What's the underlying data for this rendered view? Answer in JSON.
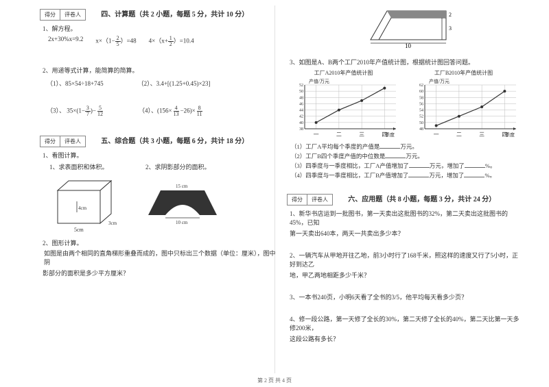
{
  "scorebox": {
    "score": "得分",
    "marker": "评卷人"
  },
  "sec4": {
    "title": "四、计算题（共 2 小题，每题 5 分，共计 10 分）",
    "q1": "1、解方程。",
    "eq1": "2x+30%x=9.2",
    "eq2a": "x×（1−",
    "eq2b": "）=48",
    "eq3a": "4×（x+",
    "eq3b": "）=10.4",
    "q2": "2、用递等式计算，能简算的简算。",
    "s1": "（1）、85×54÷18+745",
    "s2": "（2）、3.4+[(1.25+0.45)×23]",
    "s3a": "（3）、 35×(1−",
    "s3b": ")−",
    "s4a": "（4）、(156×",
    "s4b": "−26)×"
  },
  "frac": {
    "two_fifth_n": "2",
    "two_fifth_d": "5",
    "one_half_n": "1",
    "one_half_d": "2",
    "three_seventh_n": "3",
    "three_seventh_d": "7",
    "five_twelfth_n": "5",
    "five_twelfth_d": "12",
    "four_thirteen_n": "4",
    "four_thirteen_d": "13",
    "eight_eleven_n": "8",
    "eight_eleven_d": "11"
  },
  "sec5": {
    "title": "五、综合题（共 3 小题，每题 6 分，共计 18 分）",
    "q1": "1、看图计算。",
    "q1a": "1、求表面积和体积。",
    "q1b": "2、求阴影部分的面积。",
    "cube_h": "4cm",
    "cube_d": "3cm",
    "cube_w": "5cm",
    "arch_top": "15 cm",
    "arch_bot": "10 cm",
    "q2": "2、图形计算。",
    "q2t1": "如图是由两个相同的直角梯形重叠而成的，图中只标出三个数据（单位：厘米），图中阴",
    "q2t2": "影部分的面积是多少平方厘米？"
  },
  "rightTop": {
    "trap_w": "10",
    "trap_h": "3",
    "trap_r": "2",
    "q3": "3、如图是A、B两个工厂2010年产值统计图，根据统计图回答问题。",
    "chartA_title": "工厂A2010年产值统计图",
    "chartB_title": "工厂B2010年产值统计图",
    "ylab": "产值/万元",
    "xlab": "季度",
    "ticks": [
      "一",
      "二",
      "三",
      "四"
    ],
    "yA": [
      "38",
      "40",
      "42",
      "44",
      "46",
      "48",
      "50",
      "52"
    ],
    "yB": [
      "48",
      "50",
      "52",
      "54",
      "56",
      "58",
      "60",
      "62"
    ],
    "seriesA": [
      40,
      44,
      47,
      51
    ],
    "seriesB": [
      49,
      52,
      55,
      60
    ],
    "f1": "（1）工厂A平均每个季度的产值是",
    "f1b": "万元。",
    "f2": "（2）工厂B四个季度产值的中位数是",
    "f2b": "万元。",
    "f3a": "（3）四季度与一季度相比，工厂A产值增加了",
    "f3b": "万元，增加了",
    "f3c": "%。",
    "f4a": "（4）四季度与一季度相比，工厂B产值增加了",
    "f4b": "万元，增加了",
    "f4c": "%。"
  },
  "sec6": {
    "title": "六、应用题（共 8 小题，每题 3 分，共计 24 分）",
    "q1a": "1、新华书店运到一批图书，第一天卖出这批图书的32%，第二天卖出这批图书的45%，已知",
    "q1b": "第一天卖出640本，两天一共卖出多少本？",
    "q2a": "2、一辆汽车从甲地开往乙地，前3小时行了168千米，照这样的速度又行了5小时，正好到达乙",
    "q2b": "地，甲乙两地相距多少千米？",
    "q3a": "3、一本书240页，小明6天看了全书的3/5，他平均每天看多少页？",
    "q4a": "4、修一段公路，第一天修了全长的30%，第二天修了全长的40%，第二天比第一天多修200米，",
    "q4b": "这段公路有多长？"
  },
  "footer": "第 2 页 共 4 页"
}
